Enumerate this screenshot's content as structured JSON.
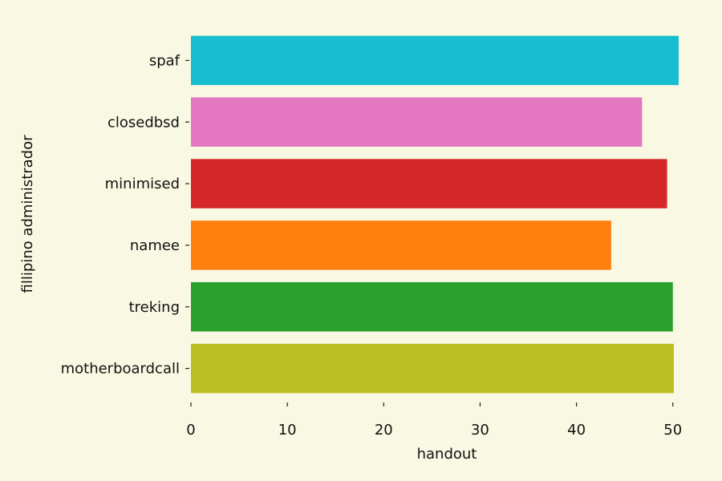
{
  "chart_data": {
    "type": "bar",
    "orientation": "horizontal",
    "categories": [
      "motherboardcall",
      "treking",
      "namee",
      "minimised",
      "closedbsd",
      "spaf"
    ],
    "values": [
      50.1,
      50.0,
      43.6,
      49.4,
      46.8,
      50.6
    ],
    "colors": [
      "#bcbd22",
      "#2ca02c",
      "#ff7f0e",
      "#d62728",
      "#e377c2",
      "#17becf"
    ],
    "xlabel": "handout",
    "ylabel": "fillipino administrador",
    "xlim": [
      0,
      53.1
    ],
    "xticks": [
      0,
      10,
      20,
      30,
      40,
      50
    ],
    "grid": false,
    "background": "#f9f8e2"
  }
}
